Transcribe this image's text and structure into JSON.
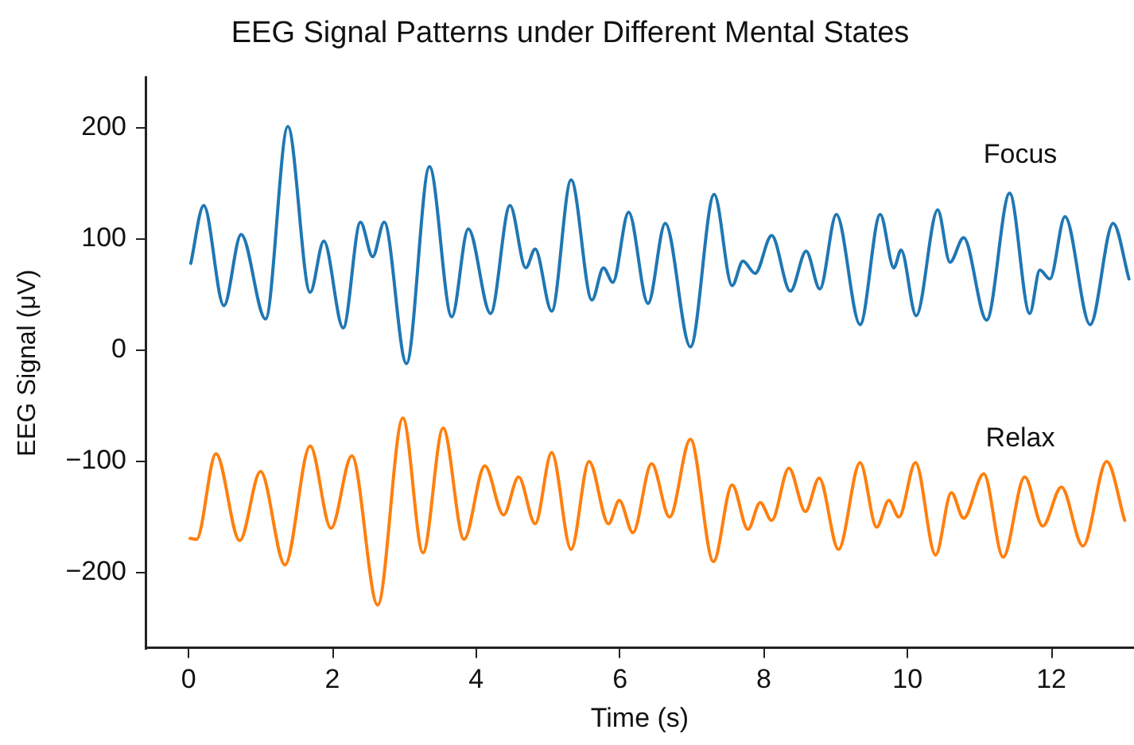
{
  "chart_data": {
    "type": "line",
    "title": "EEG Signal Patterns under Different Mental States",
    "xlabel": "Time (s)",
    "ylabel": "EEG Signal (μV)",
    "xlim": [
      -0.6,
      13.15
    ],
    "ylim": [
      -268,
      245
    ],
    "xticks": [
      0,
      2,
      4,
      6,
      8,
      10,
      12
    ],
    "yticks": [
      -200,
      -100,
      0,
      100,
      200
    ],
    "grid": false,
    "legend": false,
    "marker": "none",
    "line_style": "solid",
    "series": [
      {
        "name": "Focus",
        "color": "#1f77b4",
        "x": [
          0.03,
          0.21,
          0.49,
          0.73,
          1.07,
          1.38,
          1.69,
          1.88,
          2.15,
          2.39,
          2.56,
          2.72,
          3.03,
          3.35,
          3.66,
          3.89,
          4.2,
          4.47,
          4.69,
          4.82,
          5.05,
          5.32,
          5.61,
          5.77,
          5.9,
          6.12,
          6.39,
          6.63,
          6.98,
          7.31,
          7.56,
          7.71,
          7.88,
          8.11,
          8.37,
          8.59,
          8.78,
          9.01,
          9.34,
          9.62,
          9.81,
          9.91,
          10.12,
          10.42,
          10.59,
          10.78,
          11.1,
          11.42,
          11.7,
          11.84,
          11.98,
          12.19,
          12.54,
          12.86,
          13.08
        ],
        "values": [
          78,
          130,
          40,
          104,
          28,
          201,
          52,
          98,
          20,
          115,
          84,
          115,
          -12,
          165,
          30,
          109,
          33,
          130,
          74,
          91,
          35,
          153,
          45,
          74,
          61,
          124,
          42,
          114,
          3,
          140,
          58,
          80,
          69,
          103,
          53,
          89,
          55,
          122,
          23,
          122,
          74,
          90,
          31,
          126,
          79,
          101,
          27,
          141,
          33,
          72,
          64,
          120,
          23,
          114,
          64
        ]
      },
      {
        "name": "Relax",
        "color": "#ff7f0e",
        "x": [
          0.02,
          0.11,
          0.38,
          0.71,
          1.0,
          1.34,
          1.69,
          1.98,
          2.27,
          2.63,
          2.98,
          3.26,
          3.54,
          3.83,
          4.12,
          4.38,
          4.59,
          4.82,
          5.05,
          5.32,
          5.57,
          5.84,
          5.99,
          6.18,
          6.44,
          6.69,
          6.98,
          7.3,
          7.56,
          7.78,
          7.95,
          8.11,
          8.35,
          8.58,
          8.77,
          9.04,
          9.34,
          9.57,
          9.74,
          9.88,
          10.11,
          10.39,
          10.61,
          10.78,
          11.06,
          11.33,
          11.63,
          11.88,
          12.14,
          12.44,
          12.77,
          13.02
        ],
        "values": [
          -169,
          -170,
          -93,
          -171,
          -109,
          -193,
          -86,
          -160,
          -95,
          -229,
          -61,
          -182,
          -70,
          -170,
          -104,
          -148,
          -114,
          -156,
          -92,
          -179,
          -100,
          -156,
          -135,
          -164,
          -102,
          -150,
          -80,
          -190,
          -121,
          -161,
          -137,
          -153,
          -106,
          -145,
          -115,
          -179,
          -101,
          -159,
          -135,
          -150,
          -101,
          -184,
          -128,
          -151,
          -111,
          -186,
          -114,
          -158,
          -123,
          -176,
          -100,
          -153
        ]
      }
    ]
  }
}
